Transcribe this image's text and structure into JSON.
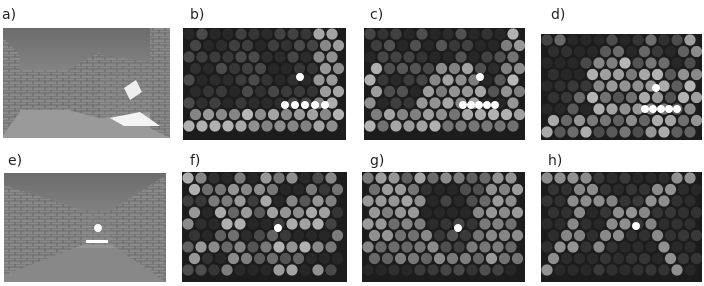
{
  "panels": {
    "labels": [
      "a)",
      "b)",
      "c)",
      "d)",
      "e)",
      "f)",
      "g)",
      "h)"
    ]
  }
}
